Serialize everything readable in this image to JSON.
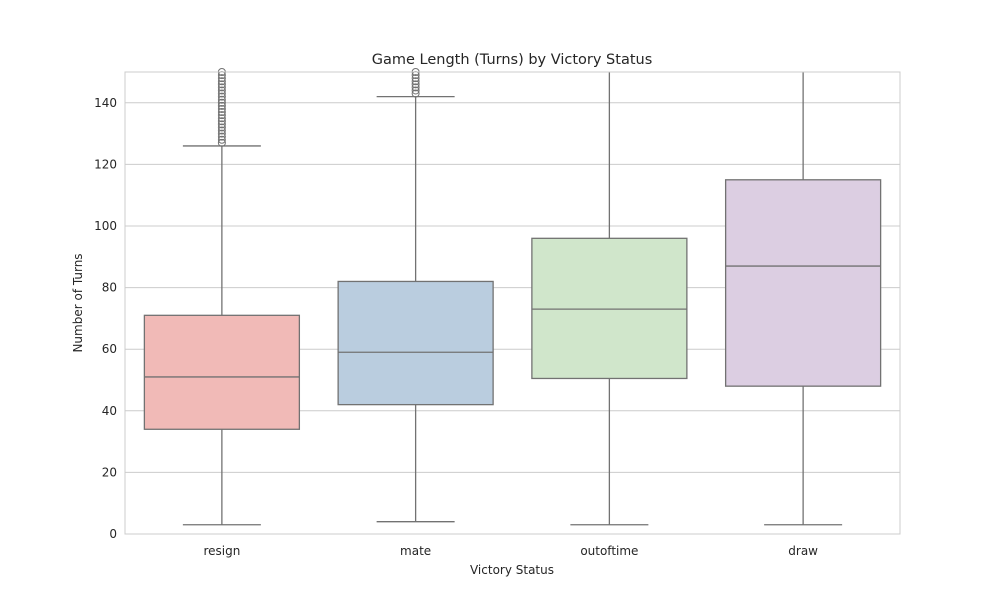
{
  "chart_data": {
    "type": "box",
    "title": "Game Length (Turns) by Victory Status",
    "xlabel": "Victory Status",
    "ylabel": "Number of Turns",
    "ylim": [
      0,
      150
    ],
    "yticks": [
      0,
      20,
      40,
      60,
      80,
      100,
      120,
      140
    ],
    "grid": true,
    "categories": [
      "resign",
      "mate",
      "outoftime",
      "draw"
    ],
    "boxes": [
      {
        "name": "resign",
        "whisker_low": 3,
        "q1": 34,
        "median": 51,
        "q3": 71,
        "whisker_high": 126,
        "outliers": [
          127,
          128,
          129,
          130,
          131,
          132,
          133,
          134,
          135,
          136,
          137,
          138,
          139,
          140,
          141,
          142,
          143,
          144,
          145,
          146,
          147,
          148,
          149,
          150
        ],
        "color": "#f1bab7"
      },
      {
        "name": "mate",
        "whisker_low": 4,
        "q1": 42,
        "median": 59,
        "q3": 82,
        "whisker_high": 142,
        "outliers": [
          143,
          144,
          145,
          146,
          147,
          148,
          149,
          150
        ],
        "color": "#bacddf"
      },
      {
        "name": "outoftime",
        "whisker_low": 3,
        "q1": 50.5,
        "median": 73,
        "q3": 96,
        "whisker_high": 150,
        "outliers": [],
        "color": "#d0e6cb"
      },
      {
        "name": "draw",
        "whisker_low": 3,
        "q1": 48,
        "median": 87,
        "q3": 115,
        "whisker_high": 150,
        "outliers": [],
        "color": "#dccee2"
      }
    ]
  }
}
